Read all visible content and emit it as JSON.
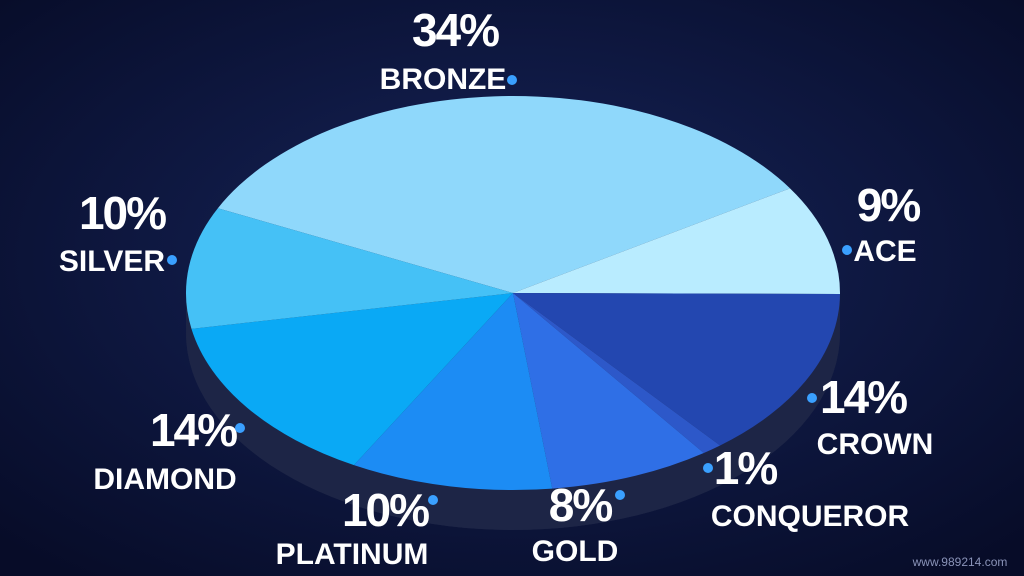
{
  "chart_data": {
    "type": "pie3d",
    "categories": [
      "BRONZE",
      "ACE",
      "CROWN",
      "CONQUEROR",
      "GOLD",
      "PLATINUM",
      "DIAMOND",
      "SILVER"
    ],
    "values": [
      34,
      9,
      14,
      1,
      8,
      10,
      14,
      10
    ],
    "value_labels": [
      "34%",
      "9%",
      "14%",
      "1%",
      "8%",
      "10%",
      "14%",
      "10%"
    ],
    "colors": [
      "#8fd8fb",
      "#b9ecff",
      "#2347b0",
      "#2d58c9",
      "#2f6fe6",
      "#1c8cf4",
      "#0aa9f5",
      "#45c1f6"
    ]
  },
  "watermark": "www.989214.com"
}
